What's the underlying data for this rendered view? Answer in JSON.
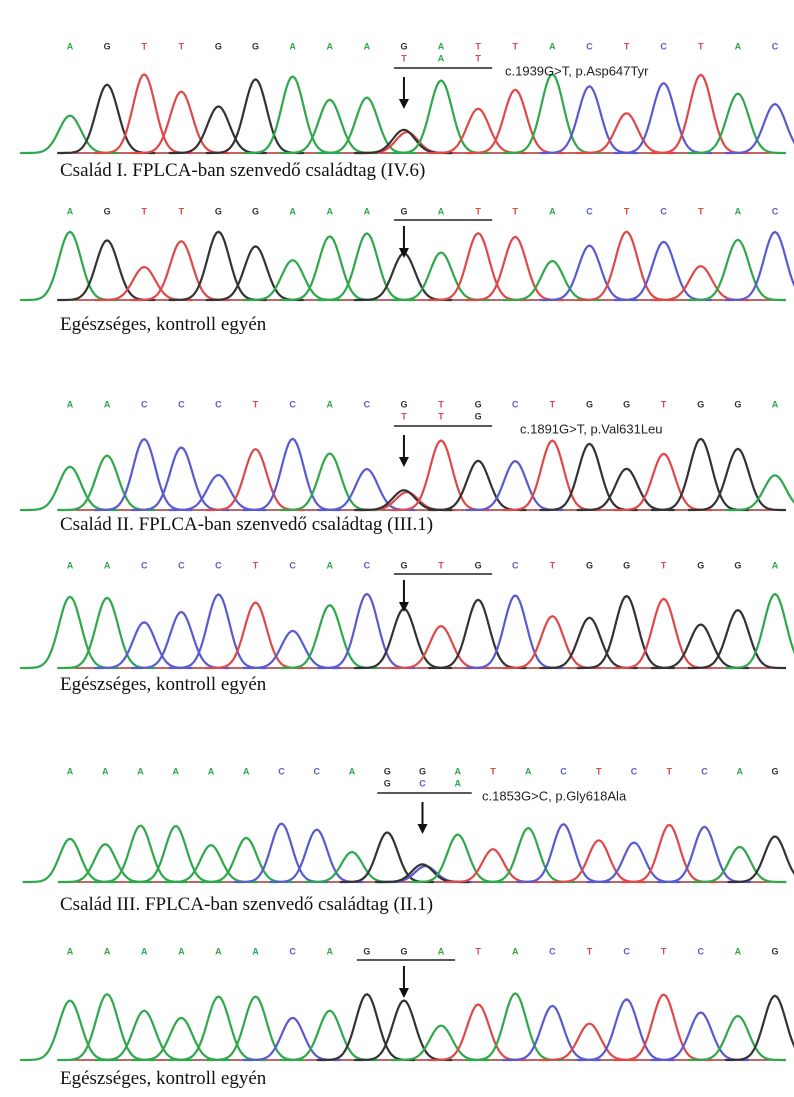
{
  "panels": [
    {
      "bases": [
        "A",
        "G",
        "T",
        "T",
        "G",
        "G",
        "A",
        "A",
        "A",
        "G",
        "A",
        "T",
        "T",
        "A",
        "C",
        "T",
        "C",
        "T",
        "A",
        "C"
      ],
      "second_row": [
        "T",
        "A",
        "T"
      ],
      "mutation": "c.1939G>T, p.Asp647Tyr",
      "caption": "Család I. FPLCA-ban szenvedő családtag (IV.6)"
    },
    {
      "bases": [
        "A",
        "G",
        "T",
        "T",
        "G",
        "G",
        "A",
        "A",
        "A",
        "G",
        "A",
        "T",
        "T",
        "A",
        "C",
        "T",
        "C",
        "T",
        "A",
        "C"
      ],
      "caption": "Egészséges, kontroll egyén"
    },
    {
      "bases": [
        "A",
        "A",
        "C",
        "C",
        "C",
        "T",
        "C",
        "A",
        "C",
        "G",
        "T",
        "G",
        "C",
        "T",
        "G",
        "G",
        "T",
        "G",
        "G",
        "A"
      ],
      "second_row": [
        "T",
        "T",
        "G"
      ],
      "mutation": "c.1891G>T, p.Val631Leu",
      "caption": "Család II. FPLCA-ban szenvedő családtag (III.1)"
    },
    {
      "bases": [
        "A",
        "A",
        "C",
        "C",
        "C",
        "T",
        "C",
        "A",
        "C",
        "G",
        "T",
        "G",
        "C",
        "T",
        "G",
        "G",
        "T",
        "G",
        "G",
        "A"
      ],
      "caption": "Egészséges, kontroll egyén"
    },
    {
      "bases": [
        "A",
        "A",
        "A",
        "A",
        "A",
        "A",
        "C",
        "C",
        "A",
        "G",
        "G",
        "A",
        "T",
        "A",
        "C",
        "T",
        "C",
        "T",
        "C",
        "A",
        "G"
      ],
      "second_row": [
        "G",
        "C",
        "A"
      ],
      "mutation": "c.1853G>C, p.Gly618Ala",
      "caption": "Család III. FPLCA-ban szenvedő családtag (II.1)"
    },
    {
      "bases": [
        "A",
        "A",
        "A",
        "A",
        "A",
        "A",
        "C",
        "A",
        "G",
        "G",
        "A",
        "T",
        "A",
        "C",
        "T",
        "C",
        "T",
        "C",
        "A",
        "G"
      ],
      "caption": "Egészséges, kontroll egyén"
    }
  ]
}
